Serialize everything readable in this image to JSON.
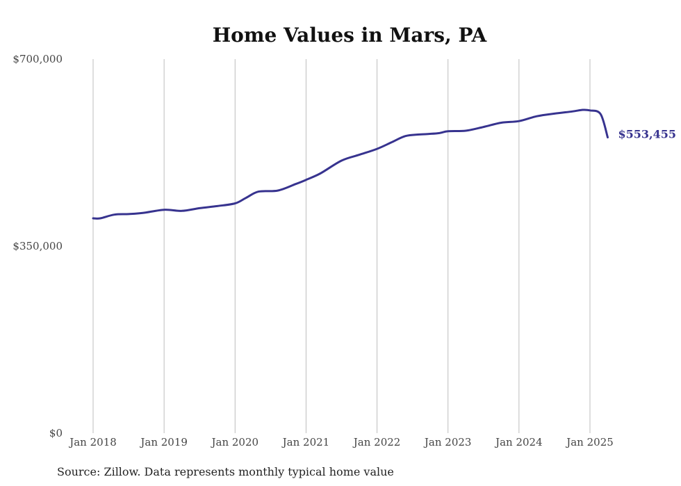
{
  "chart_data": {
    "type": "line",
    "title": "Home Values in Mars, PA",
    "xlabel": "",
    "ylabel": "",
    "ylim": [
      0,
      700000
    ],
    "y_ticks": [
      {
        "value": 0,
        "label": "$0"
      },
      {
        "value": 350000,
        "label": "$350,000"
      },
      {
        "value": 700000,
        "label": "$700,000"
      }
    ],
    "x_ticks": [
      {
        "value": 2018,
        "label": "Jan 2018"
      },
      {
        "value": 2019,
        "label": "Jan 2019"
      },
      {
        "value": 2020,
        "label": "Jan 2020"
      },
      {
        "value": 2021,
        "label": "Jan 2021"
      },
      {
        "value": 2022,
        "label": "Jan 2022"
      },
      {
        "value": 2023,
        "label": "Jan 2023"
      },
      {
        "value": 2024,
        "label": "Jan 2024"
      },
      {
        "value": 2025,
        "label": "Jan 2025"
      }
    ],
    "xlim": [
      2018,
      2025.25
    ],
    "grid": "vertical",
    "series": [
      {
        "color": "#37338f",
        "points": [
          [
            2018.0,
            402000
          ],
          [
            2018.1,
            402000
          ],
          [
            2018.3,
            409000
          ],
          [
            2018.5,
            410000
          ],
          [
            2018.7,
            412000
          ],
          [
            2019.0,
            418000
          ],
          [
            2019.25,
            416000
          ],
          [
            2019.5,
            421000
          ],
          [
            2019.75,
            425000
          ],
          [
            2020.0,
            430000
          ],
          [
            2020.15,
            440000
          ],
          [
            2020.33,
            452000
          ],
          [
            2020.6,
            454000
          ],
          [
            2020.85,
            466000
          ],
          [
            2021.0,
            474000
          ],
          [
            2021.2,
            486000
          ],
          [
            2021.5,
            510000
          ],
          [
            2021.75,
            521000
          ],
          [
            2022.0,
            532000
          ],
          [
            2022.2,
            544000
          ],
          [
            2022.4,
            556000
          ],
          [
            2022.6,
            559000
          ],
          [
            2022.85,
            561000
          ],
          [
            2023.0,
            565000
          ],
          [
            2023.25,
            566000
          ],
          [
            2023.5,
            573000
          ],
          [
            2023.75,
            581000
          ],
          [
            2024.0,
            584000
          ],
          [
            2024.25,
            593000
          ],
          [
            2024.5,
            598000
          ],
          [
            2024.75,
            602000
          ],
          [
            2024.9,
            605000
          ],
          [
            2025.0,
            604000
          ],
          [
            2025.15,
            597000
          ],
          [
            2025.25,
            553455
          ]
        ]
      }
    ],
    "end_label": "$553,455",
    "source": "Source: Zillow. Data represents monthly typical home value"
  }
}
